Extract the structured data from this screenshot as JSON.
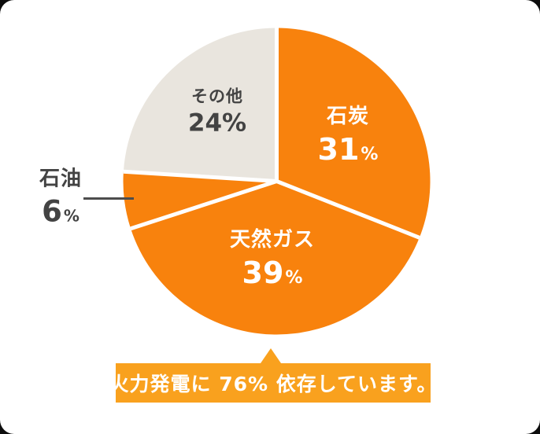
{
  "chart_data": {
    "type": "pie",
    "title": "",
    "unit": "%",
    "direction": "clockwise",
    "start_angle_deg": 0,
    "center": {
      "x": 351.5,
      "y": 230.5
    },
    "radius": 195,
    "divider_color": "#FFFFFF",
    "divider_width": 5,
    "percent_sign": "%",
    "slices": [
      {
        "key": "coal",
        "name": "石炭",
        "value": 31,
        "color": "#F8820D",
        "label_color": "#FFFFFF"
      },
      {
        "key": "gas",
        "name": "天然ガス",
        "value": 39,
        "color": "#F8820D",
        "label_color": "#FFFFFF"
      },
      {
        "key": "oil",
        "name": "石油",
        "value": 6,
        "color": "#F8820D",
        "label_color": "#434343"
      },
      {
        "key": "other",
        "name": "その他",
        "value": 24,
        "color": "#E9E5DE",
        "label_color": "#434343"
      }
    ]
  },
  "callout": {
    "text": "火力発電に 76% 依存しています。",
    "background": "#F9A11E",
    "text_color": "#FFFFFF"
  },
  "leader_line": {
    "color": "#4D4D4D"
  },
  "card": {
    "background": "#FFFFFF"
  }
}
